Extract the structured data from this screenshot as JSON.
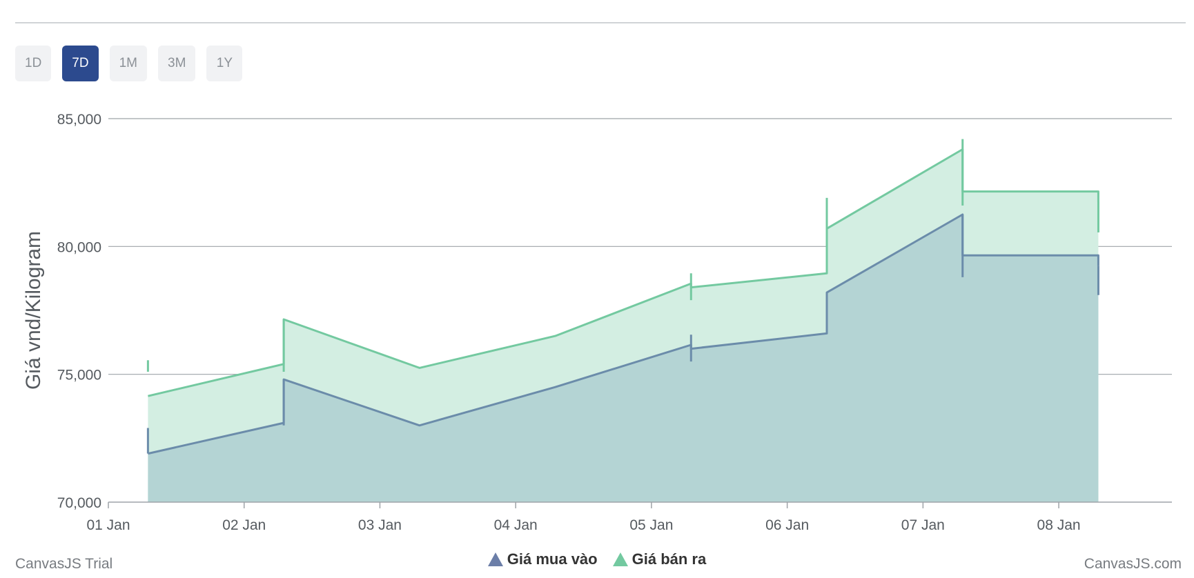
{
  "range_selector": {
    "buttons": [
      "1D",
      "7D",
      "1M",
      "3M",
      "1Y"
    ],
    "active": "7D"
  },
  "credits": {
    "left": "CanvasJS Trial",
    "right": "CanvasJS.com"
  },
  "colors": {
    "buy_line": "#6b8caa",
    "buy_fill": "#b4d4d4",
    "sell_line": "#73c9a0",
    "sell_fill": "#d3eee2",
    "buy_legend": "#6b7ea8",
    "sell_legend": "#73c9a0",
    "grid": "#9ea3a8",
    "axis_text": "#555a5f"
  },
  "chart_data": {
    "type": "area",
    "title": "",
    "xlabel": "",
    "ylabel": "Giá vnd/Kilogram",
    "ylim": [
      70000,
      85000
    ],
    "yticks": [
      70000,
      75000,
      80000,
      85000
    ],
    "y_tick_labels": [
      "70,000",
      "75,000",
      "80,000",
      "85,000"
    ],
    "x_ticks": [
      "01 Jan",
      "02 Jan",
      "03 Jan",
      "04 Jan",
      "05 Jan",
      "06 Jan",
      "07 Jan",
      "08 Jan"
    ],
    "x_range": [
      "01 Jan 00:00",
      "08 Jan 20:00"
    ],
    "grid": true,
    "legend_position": "bottom-center",
    "series": [
      {
        "name": "Giá mua vào",
        "x": [
          "01 Jan 07:00",
          "02 Jan 07:00",
          "03 Jan 07:00",
          "04 Jan 07:00",
          "05 Jan 07:00",
          "06 Jan 07:00",
          "07 Jan 07:00",
          "08 Jan 07:00"
        ],
        "open": [
          71900,
          74800,
          73000,
          74500,
          76000,
          78200,
          79650,
          79250
        ],
        "close": [
          73100,
          73000,
          74500,
          76150,
          76600,
          81250,
          79650,
          79250
        ],
        "wick": [
          [
            71900,
            72900
          ],
          [
            74800,
            73000
          ],
          null,
          null,
          [
            76550,
            75500
          ],
          [
            78200,
            78200
          ],
          [
            81250,
            78800
          ],
          [
            79250,
            78100
          ]
        ]
      },
      {
        "name": "Giá bán ra",
        "x": [
          "01 Jan 07:00",
          "02 Jan 07:00",
          "03 Jan 07:00",
          "04 Jan 07:00",
          "05 Jan 07:00",
          "06 Jan 07:00",
          "07 Jan 07:00",
          "08 Jan 07:00"
        ],
        "open": [
          74150,
          77150,
          75250,
          76500,
          78400,
          80700,
          82150,
          81750
        ],
        "close": [
          75400,
          75250,
          76500,
          78550,
          78950,
          83800,
          82150,
          81750
        ],
        "wick": [
          [
            75550,
            75100
          ],
          [
            77150,
            75100
          ],
          null,
          null,
          [
            78950,
            77900
          ],
          [
            81900,
            79000
          ],
          [
            84200,
            81600
          ],
          [
            81750,
            80550
          ]
        ]
      }
    ]
  }
}
